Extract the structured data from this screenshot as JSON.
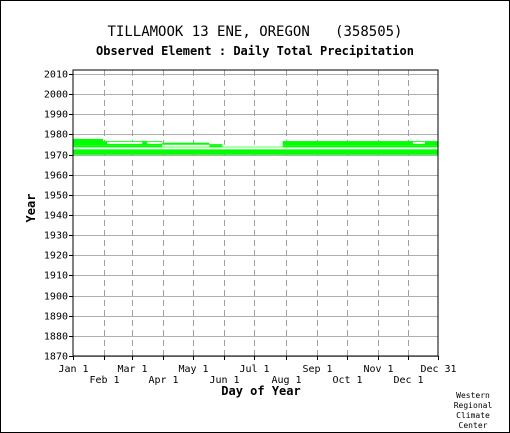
{
  "chart_data": {
    "type": "bar",
    "title": "TILLAMOOK 13 ENE, OREGON   (358505)",
    "subtitle": "Observed Element : Daily Total Precipitation",
    "xlabel": "Day of Year",
    "ylabel": "Year",
    "ylim": [
      1870,
      2012
    ],
    "xlim": [
      1,
      365
    ],
    "y_ticks": [
      "1870",
      "1880",
      "1890",
      "1900",
      "1910",
      "1920",
      "1930",
      "1940",
      "1950",
      "1960",
      "1970",
      "1980",
      "1990",
      "2000",
      "2010"
    ],
    "x_ticks_top": [
      {
        "label": "Jan 1",
        "day": 1
      },
      {
        "label": "Mar 1",
        "day": 60
      },
      {
        "label": "May 1",
        "day": 121
      },
      {
        "label": "Jul 1",
        "day": 182
      },
      {
        "label": "Sep 1",
        "day": 244
      },
      {
        "label": "Nov 1",
        "day": 305
      },
      {
        "label": "Dec 31",
        "day": 365
      }
    ],
    "x_ticks_bottom": [
      {
        "label": "Feb 1",
        "day": 32
      },
      {
        "label": "Apr 1",
        "day": 91
      },
      {
        "label": "Jun 1",
        "day": 152
      },
      {
        "label": "Aug 1",
        "day": 213
      },
      {
        "label": "Oct 1",
        "day": 274
      },
      {
        "label": "Dec 1",
        "day": 335
      }
    ],
    "grid": true,
    "bar_color": "#00ff00",
    "coverage": [
      {
        "start_day": 1,
        "end_day": 365,
        "start_year": 1969.9,
        "end_year": 1974.4
      },
      {
        "start_day": 1,
        "end_day": 31,
        "start_year": 1974.4,
        "end_year": 1977.8
      },
      {
        "start_day": 31,
        "end_day": 90,
        "start_year": 1974.4,
        "end_year": 1976.7
      },
      {
        "start_day": 90,
        "end_day": 137,
        "start_year": 1974.4,
        "end_year": 1975.9
      },
      {
        "start_day": 137,
        "end_day": 150,
        "start_year": 1974.4,
        "end_year": 1975.2
      },
      {
        "start_day": 210,
        "end_day": 365,
        "start_year": 1974.4,
        "end_year": 1976.7
      }
    ]
  },
  "credit": [
    "Western",
    "Regional",
    "Climate",
    "Center"
  ]
}
